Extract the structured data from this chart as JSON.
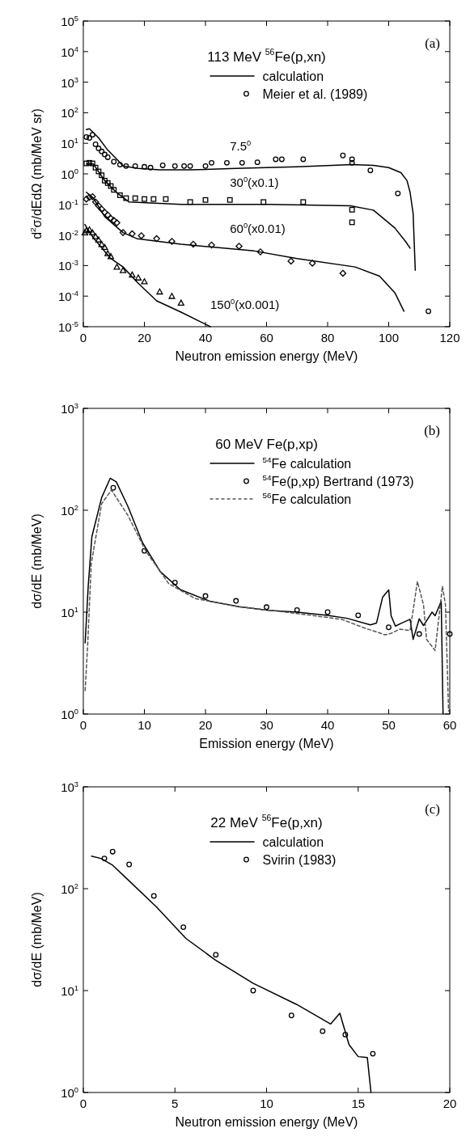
{
  "chart_data": [
    {
      "type": "line",
      "title": "113 MeV $^{56}$Fe(p,xn)",
      "xlabel": "Neutron emission energy (MeV)",
      "ylabel": "d$^{2}$σ/dEdΩ  (mb/MeV sr)",
      "log": "y",
      "grid": false,
      "legend": "top",
      "xlim": [
        0,
        120
      ],
      "xticks": [
        0,
        20,
        40,
        60,
        80,
        100,
        120
      ],
      "ylim": [
        1e-05,
        100000
      ],
      "yticks": [
        {
          "value": 1e-05,
          "label": "10$^{-5}$"
        },
        {
          "value": 0.0001,
          "label": "10$^{-4}$"
        },
        {
          "value": 0.001,
          "label": "10$^{-3}$"
        },
        {
          "value": 0.01,
          "label": "10$^{-2}$"
        },
        {
          "value": 0.1,
          "label": "10$^{-1}$"
        },
        {
          "value": 1,
          "label": "10$^{0}$"
        },
        {
          "value": 10,
          "label": "10$^{1}$"
        },
        {
          "value": 100,
          "label": "10$^{2}$"
        },
        {
          "value": 1000,
          "label": "10$^{3}$"
        },
        {
          "value": 10000,
          "label": "10$^{4}$"
        },
        {
          "value": 100000,
          "label": "10$^{5}$"
        }
      ],
      "annotations": [
        "(a)",
        "7.5$^{0}$",
        "30$^{0}$(x0.1)",
        "60$^{0}$(x0.01)",
        "150$^{0}$(x0.001)"
      ],
      "series": [
        {
          "name": "calculation",
          "color": "#000000",
          "line_style": "solid",
          "x": [
            1,
            2,
            5,
            8,
            11,
            13,
            18,
            25,
            35,
            50,
            70,
            88,
            95,
            100,
            104,
            106,
            107,
            108,
            108.7
          ],
          "values": [
            28,
            30,
            15,
            6,
            3,
            1.8,
            1.5,
            1.35,
            1.35,
            1.5,
            1.7,
            2.0,
            1.9,
            1.6,
            1.1,
            0.6,
            0.25,
            0.05,
            0.0007
          ]
        },
        {
          "name": "Meier et al. (1989)",
          "type": "scatter",
          "marker": "circle",
          "color": "#000000",
          "x": [
            1,
            2,
            3,
            4,
            5,
            6,
            7,
            8,
            10,
            12,
            14,
            17,
            20,
            22,
            26,
            30,
            33,
            35,
            40,
            42,
            47,
            52,
            57,
            63,
            65,
            72,
            85,
            88,
            88,
            94,
            103,
            113
          ],
          "values": [
            16,
            15,
            19,
            9.3,
            6.8,
            5.4,
            4.3,
            3.5,
            2.5,
            2,
            1.8,
            1.8,
            1.7,
            1.6,
            1.9,
            1.8,
            1.8,
            1.8,
            1.8,
            2.3,
            2.3,
            2.3,
            2.4,
            3.0,
            3.0,
            3.0,
            4.0,
            3.0,
            2.3,
            1.3,
            0.23,
            3.2e-05
          ]
        },
        {
          "color": "#000000",
          "line_style": "solid",
          "x": [
            1,
            3.3,
            7,
            11,
            15,
            32,
            61,
            87.5,
            95,
            102,
            105.6,
            107
          ],
          "values": [
            2.1,
            2.1,
            0.6,
            0.24,
            0.12,
            0.1,
            0.1,
            0.09,
            0.065,
            0.017,
            0.006,
            0.0037
          ]
        },
        {
          "type": "scatter",
          "marker": "square",
          "color": "#000000",
          "x": [
            1,
            2,
            3,
            4,
            5,
            6,
            7,
            8,
            9,
            10,
            12,
            14,
            17,
            20,
            23,
            27,
            35,
            40,
            48,
            59,
            72,
            88,
            88
          ],
          "values": [
            2.2,
            2.3,
            2.2,
            1.6,
            1.2,
            0.9,
            0.6,
            0.5,
            0.4,
            0.3,
            0.2,
            0.16,
            0.16,
            0.15,
            0.15,
            0.15,
            0.12,
            0.14,
            0.14,
            0.12,
            0.12,
            0.067,
            0.026
          ]
        },
        {
          "color": "#000000",
          "line_style": "solid",
          "x": [
            1,
            3.3,
            7,
            13,
            17.7,
            32,
            56,
            70,
            89,
            97,
            102,
            105
          ],
          "values": [
            0.25,
            0.16,
            0.04,
            0.012,
            0.0075,
            0.005,
            0.003,
            0.0017,
            0.0009,
            0.00045,
            0.00013,
            3.2e-05
          ]
        },
        {
          "type": "scatter",
          "marker": "diamond",
          "color": "#000000",
          "x": [
            1,
            2,
            3,
            4,
            5,
            6,
            7,
            8,
            9,
            10,
            11,
            13,
            16,
            19,
            24,
            29,
            36,
            42,
            51,
            58,
            68,
            75,
            85
          ],
          "values": [
            0.15,
            0.17,
            0.18,
            0.12,
            0.09,
            0.07,
            0.055,
            0.045,
            0.035,
            0.03,
            0.025,
            0.012,
            0.011,
            0.0095,
            0.0076,
            0.0062,
            0.005,
            0.0047,
            0.0043,
            0.0028,
            0.0014,
            0.0012,
            0.00056
          ]
        },
        {
          "color": "#000000",
          "line_style": "solid",
          "x": [
            0.5,
            3.3,
            9,
            13,
            17.7,
            24,
            32,
            41.6
          ],
          "values": [
            0.022,
            0.008,
            0.0017,
            0.0009,
            0.00028,
            7e-05,
            3e-05,
            1e-05
          ]
        },
        {
          "type": "scatter",
          "marker": "triangle",
          "color": "#000000",
          "x": [
            0.5,
            1,
            2,
            3,
            4,
            5,
            6,
            7,
            8,
            9,
            11,
            13,
            16,
            18,
            20,
            25,
            29,
            32
          ],
          "values": [
            0.012,
            0.014,
            0.015,
            0.012,
            0.009,
            0.007,
            0.005,
            0.004,
            0.0025,
            0.002,
            0.0009,
            0.0007,
            0.0005,
            0.0004,
            0.0003,
            0.00014,
            0.0001,
            6e-05
          ]
        }
      ]
    },
    {
      "type": "line",
      "title": "60 MeV Fe(p,xp)",
      "xlabel": "Emission energy (MeV)",
      "ylabel": "dσ/dE (mb/MeV)",
      "log": "y",
      "grid": false,
      "legend": "top",
      "xlim": [
        0,
        60
      ],
      "xticks": [
        0,
        10,
        20,
        30,
        40,
        50,
        60
      ],
      "ylim": [
        1,
        1000
      ],
      "yticks": [
        {
          "value": 1,
          "label": "10$^{0}$"
        },
        {
          "value": 10,
          "label": "10$^{1}$"
        },
        {
          "value": 100,
          "label": "10$^{2}$"
        },
        {
          "value": 1000,
          "label": "10$^{3}$"
        }
      ],
      "annotations": [
        "(b)"
      ],
      "series": [
        {
          "name": "$^{54}$Fe calculation",
          "color": "#000000",
          "line_style": "solid",
          "x": [
            0.3,
            0.8,
            1.4,
            3,
            4.4,
            5.4,
            7.3,
            9.7,
            12.6,
            15.9,
            20.7,
            25.5,
            30.3,
            35,
            40,
            43.2,
            47,
            48,
            49,
            50,
            50.4,
            51.1,
            52.3,
            53.5,
            54,
            55,
            55.7,
            57.1,
            57.6,
            58.6,
            58.9
          ],
          "values": [
            5,
            18,
            55,
            133,
            206,
            190,
            109,
            48,
            25,
            16.6,
            12.8,
            11.3,
            10.4,
            10,
            9.3,
            8.7,
            7.5,
            7.8,
            14,
            16.5,
            9.2,
            7.3,
            7.9,
            8.5,
            5.4,
            8.6,
            7.4,
            10,
            9.2,
            12.8,
            1
          ]
        },
        {
          "name": "$^{54}$Fe(p,xp) Bertrand (1973)",
          "type": "scatter",
          "marker": "circle",
          "color": "#000000",
          "x": [
            4.9,
            10,
            15,
            20,
            25,
            30,
            35,
            40,
            45,
            50,
            55,
            60
          ],
          "values": [
            166,
            40,
            19.5,
            14.4,
            12.9,
            11.2,
            10.5,
            10,
            9.3,
            7.1,
            6.1,
            6.1
          ]
        },
        {
          "name": "$^{56}$Fe calculation",
          "color": "#555555",
          "line_style": "dashed",
          "x": [
            0.3,
            0.7,
            1.3,
            3,
            4.6,
            7.3,
            10.2,
            14,
            18.3,
            25.5,
            35,
            42.3,
            46,
            49.4,
            50.4,
            51.8,
            53.5,
            54.7,
            55.7,
            56.2,
            57.6,
            58.8,
            59.3,
            59.8
          ],
          "values": [
            1.7,
            4.6,
            30,
            116,
            158,
            89,
            40,
            19,
            13.6,
            11.3,
            9.7,
            8.5,
            7,
            6,
            6.2,
            6.8,
            6.6,
            20,
            11.8,
            5.4,
            4.2,
            18,
            11.7,
            1.07
          ]
        }
      ]
    },
    {
      "type": "line",
      "title": "22 MeV $^{56}$Fe(p,xn)",
      "xlabel": "Neutron emission energy (MeV)",
      "ylabel": "dσ/dE (mb/MeV)",
      "log": "y",
      "grid": false,
      "legend": "top",
      "xlim": [
        0,
        20
      ],
      "xticks": [
        0,
        5,
        10,
        15,
        20
      ],
      "ylim": [
        1,
        1000
      ],
      "yticks": [
        {
          "value": 1,
          "label": "10$^{0}$"
        },
        {
          "value": 10,
          "label": "10$^{1}$"
        },
        {
          "value": 100,
          "label": "10$^{2}$"
        },
        {
          "value": 1000,
          "label": "10$^{3}$"
        }
      ],
      "annotations": [
        "(c)"
      ],
      "series": [
        {
          "name": "calculation",
          "color": "#000000",
          "line_style": "solid",
          "x": [
            0.45,
            0.96,
            1.6,
            2.55,
            4,
            5.6,
            7.2,
            9.26,
            11.65,
            13.5,
            14,
            14.5,
            15,
            15.5,
            15.7
          ],
          "values": [
            209,
            198,
            170,
            117,
            66,
            32.5,
            20,
            11.8,
            7.3,
            4.7,
            6,
            2.95,
            2.25,
            2.2,
            1
          ]
        },
        {
          "name": "Svirin (1983)",
          "type": "scatter",
          "marker": "circle",
          "color": "#000000",
          "x": [
            1.15,
            1.6,
            2.5,
            3.85,
            5.46,
            7.23,
            9.27,
            11.36,
            13.06,
            14.3,
            15.8
          ],
          "values": [
            198,
            231,
            173,
            85,
            41.9,
            22.5,
            10,
            5.7,
            4,
            3.7,
            2.4
          ]
        }
      ]
    }
  ]
}
